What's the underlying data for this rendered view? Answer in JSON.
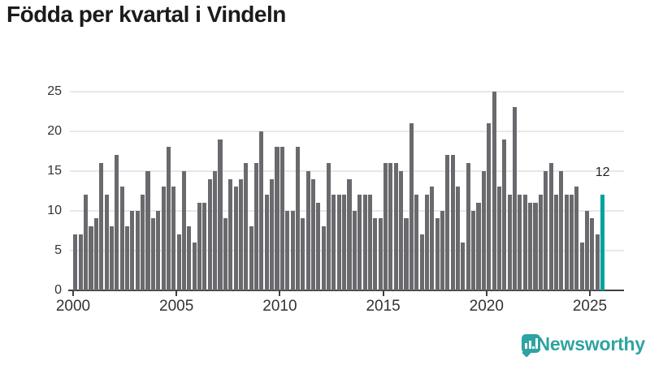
{
  "title": "Födda per kvartal i Vindeln",
  "colors": {
    "title": "#1b1b1b",
    "bar": "#69696e",
    "highlight": "#00a39d",
    "grid": "#e8e8e8",
    "axis": "#3f3f3f",
    "tick_label": "#333333",
    "brand": "#2fa3a1",
    "background": "#ffffff"
  },
  "chart_data": {
    "type": "bar",
    "title": "Födda per kvartal i Vindeln",
    "xlabel": "",
    "ylabel": "",
    "ylim": [
      0,
      25
    ],
    "grid": true,
    "y_ticks": [
      0,
      5,
      10,
      15,
      20,
      25
    ],
    "x_ticks": [
      "2000",
      "2005",
      "2010",
      "2015",
      "2020",
      "2025"
    ],
    "start_quarter": "2000-Q1",
    "end_quarter": "2025-Q3",
    "series": [
      {
        "name": "Födda per kvartal",
        "values": [
          7,
          7,
          12,
          8,
          9,
          16,
          12,
          8,
          17,
          13,
          8,
          10,
          10,
          12,
          15,
          9,
          10,
          13,
          18,
          13,
          7,
          15,
          8,
          6,
          11,
          11,
          14,
          15,
          19,
          9,
          14,
          13,
          14,
          16,
          8,
          16,
          20,
          12,
          14,
          18,
          18,
          10,
          10,
          18,
          9,
          15,
          14,
          11,
          8,
          16,
          12,
          12,
          12,
          14,
          10,
          12,
          12,
          12,
          9,
          9,
          16,
          16,
          16,
          15,
          9,
          21,
          12,
          7,
          12,
          13,
          9,
          10,
          17,
          17,
          13,
          6,
          16,
          10,
          11,
          15,
          21,
          25,
          13,
          19,
          12,
          23,
          12,
          12,
          11,
          11,
          12,
          15,
          16,
          12,
          15,
          12,
          12,
          13,
          6,
          10,
          9,
          7,
          12
        ]
      }
    ],
    "highlight_last_bar": true,
    "last_bar_label": "12",
    "legend": null
  },
  "footer": {
    "brand": "Newsworthy",
    "logo_icon": "bar-chart-speech-bubble-icon"
  }
}
